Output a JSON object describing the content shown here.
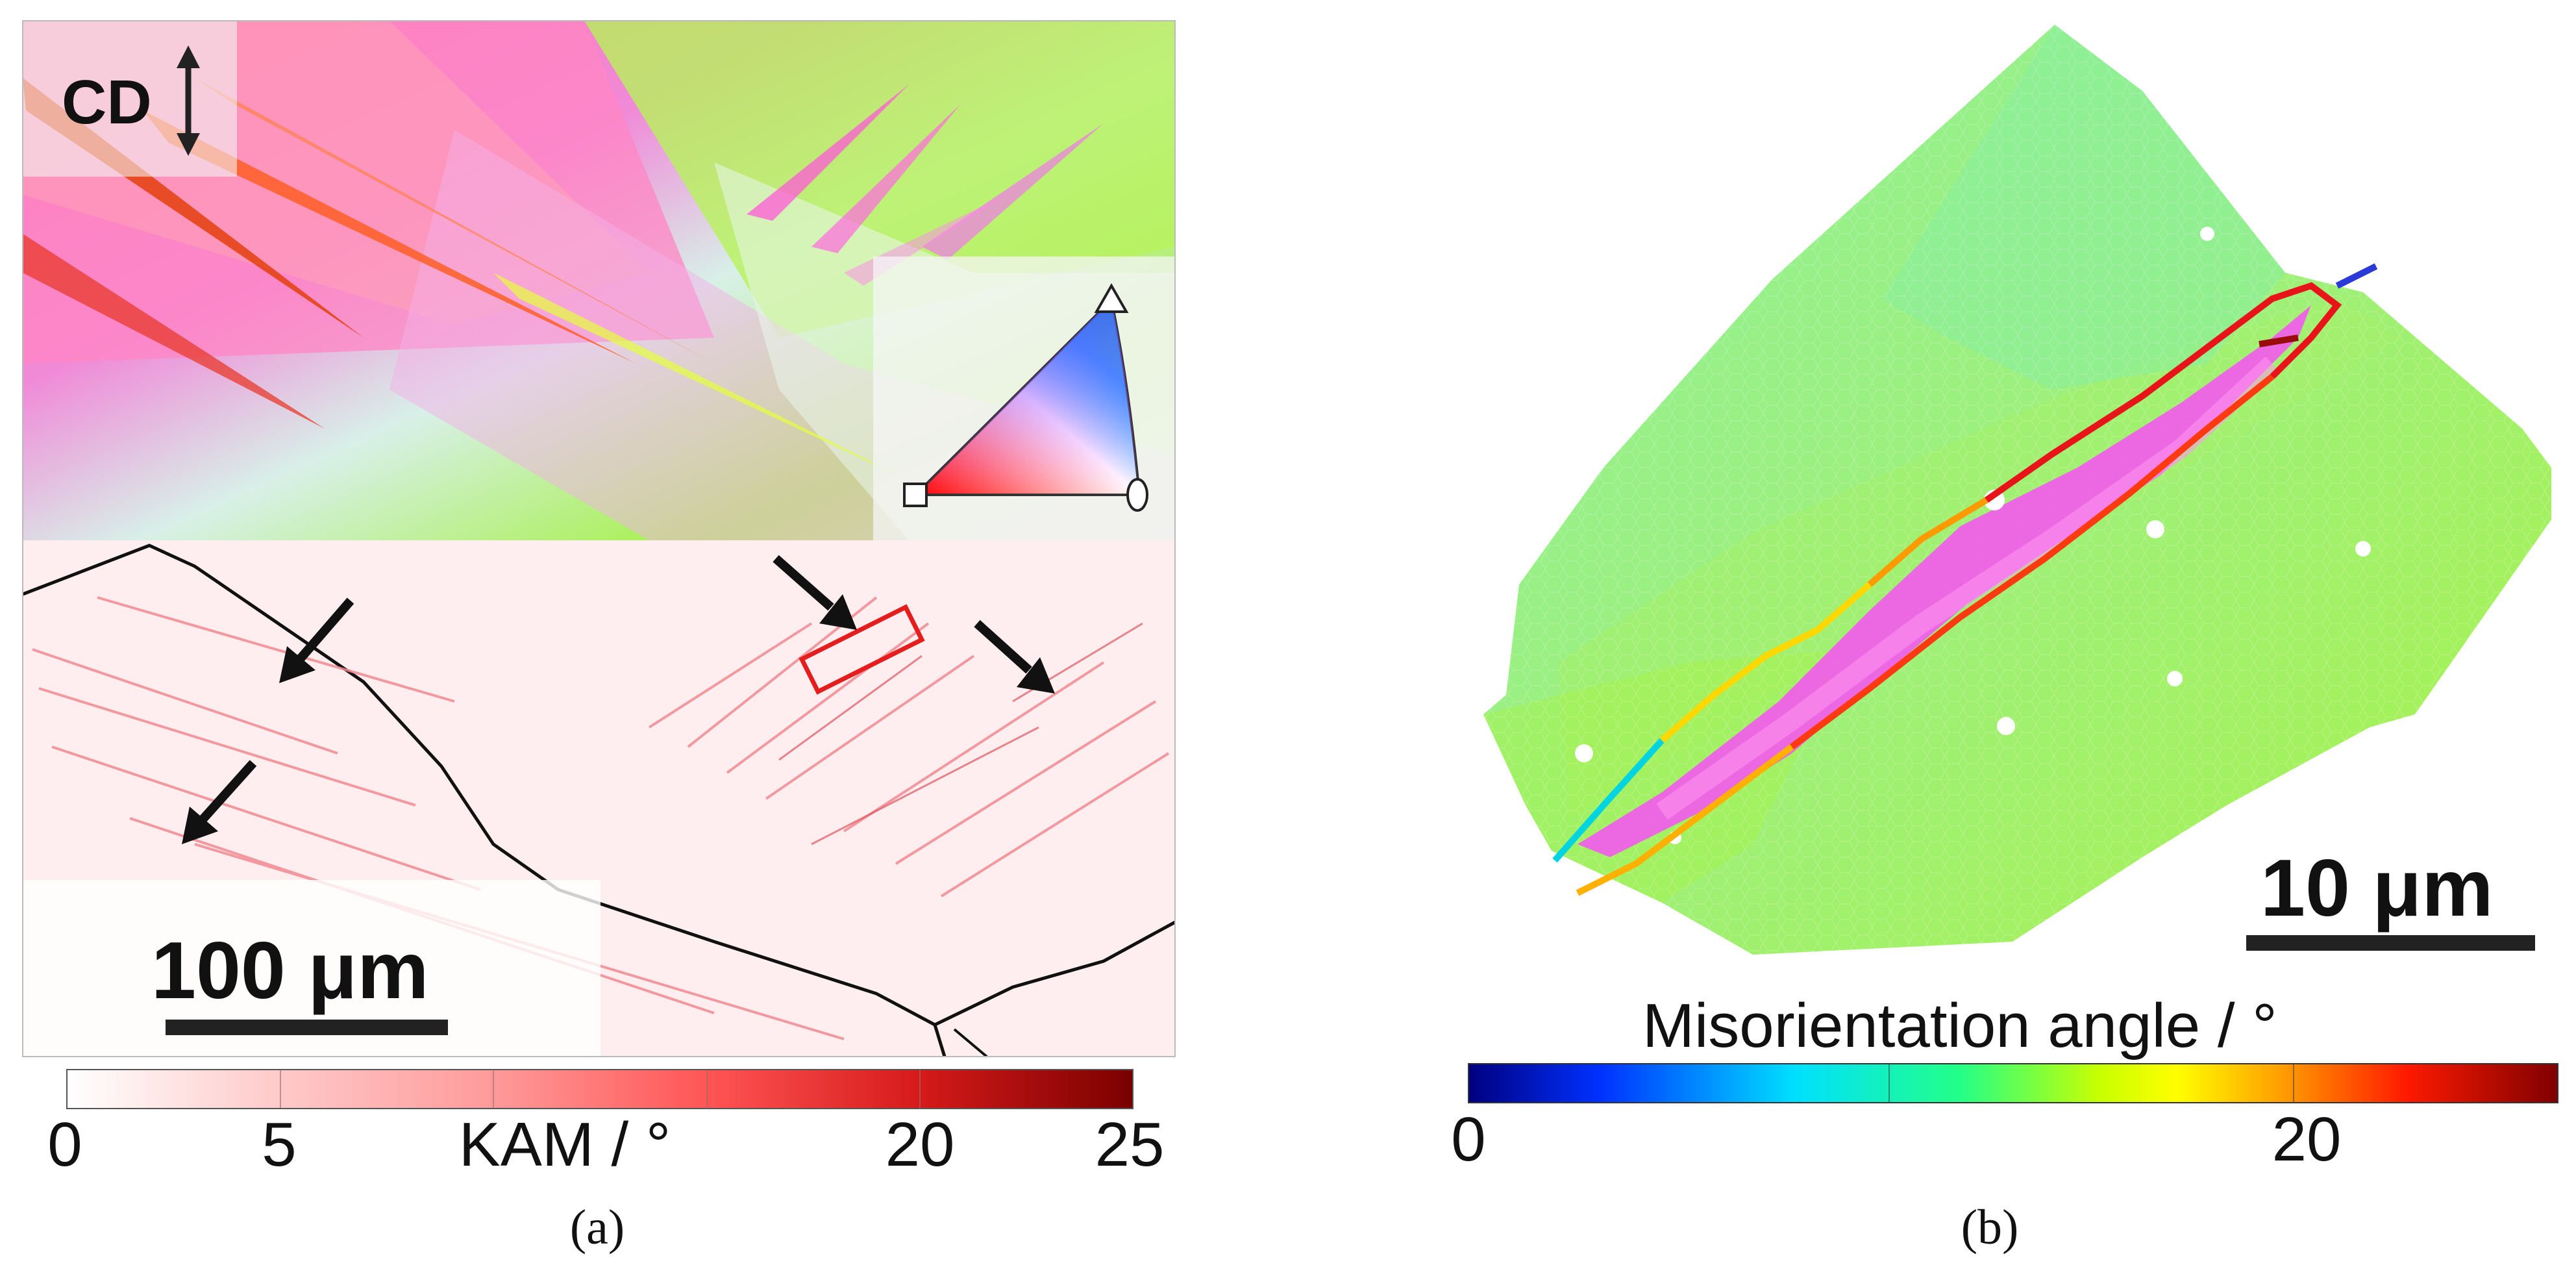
{
  "panel_a": {
    "direction_label": "CD",
    "scale_bar_label": "100 μm",
    "colorbar": {
      "label": "KAM / °",
      "ticks": [
        "0",
        "5",
        "20",
        "25"
      ],
      "colors": [
        "#ffffff",
        "#ffc9c9",
        "#ff7a7a",
        "#ff4b4b",
        "#d61a1a",
        "#7a0000"
      ]
    },
    "caption": "(a)"
  },
  "panel_b": {
    "title": "Misorientation angle / °",
    "scale_bar_label": "10 μm",
    "colorbar": {
      "ticks": [
        "0",
        "20"
      ],
      "colors": [
        "#00007f",
        "#0050ff",
        "#00e0ff",
        "#22ff88",
        "#c8ff00",
        "#ffff00",
        "#ff9a00",
        "#ff1a00",
        "#7f0000"
      ]
    },
    "caption": "(b)"
  }
}
